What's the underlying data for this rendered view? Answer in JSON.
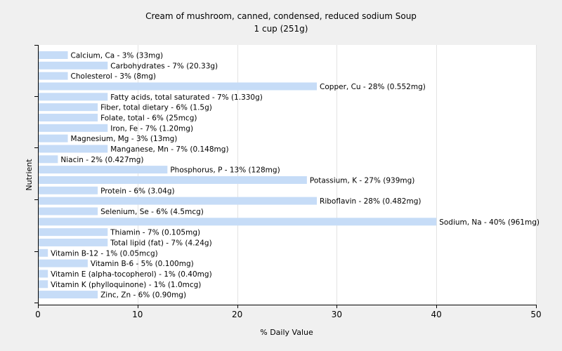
{
  "chart_data": {
    "type": "bar",
    "orientation": "horizontal",
    "title": "Cream of mushroom, canned, condensed, reduced sodium Soup",
    "subtitle": "1 cup (251g)",
    "xlabel": "% Daily Value",
    "ylabel": "Nutrient",
    "xlim": [
      0,
      50
    ],
    "xticks": [
      0,
      10,
      20,
      30,
      40,
      50
    ],
    "grid": true,
    "bar_color": "#c6dcf7",
    "categories": [
      "Calcium, Ca",
      "Carbohydrates",
      "Cholesterol",
      "Copper, Cu",
      "Fatty acids, total saturated",
      "Fiber, total dietary",
      "Folate, total",
      "Iron, Fe",
      "Magnesium, Mg",
      "Manganese, Mn",
      "Niacin",
      "Phosphorus, P",
      "Potassium, K",
      "Protein",
      "Riboflavin",
      "Selenium, Se",
      "Sodium, Na",
      "Thiamin",
      "Total lipid (fat)",
      "Vitamin B-12",
      "Vitamin B-6",
      "Vitamin E (alpha-tocopherol)",
      "Vitamin K (phylloquinone)",
      "Zinc, Zn"
    ],
    "values": [
      3,
      7,
      3,
      28,
      7,
      6,
      6,
      7,
      3,
      7,
      2,
      13,
      27,
      6,
      28,
      6,
      40,
      7,
      7,
      1,
      5,
      1,
      1,
      6
    ],
    "labels": [
      "Calcium, Ca - 3% (33mg)",
      "Carbohydrates - 7% (20.33g)",
      "Cholesterol - 3% (8mg)",
      "Copper, Cu - 28% (0.552mg)",
      "Fatty acids, total saturated - 7% (1.330g)",
      "Fiber, total dietary - 6% (1.5g)",
      "Folate, total - 6% (25mcg)",
      "Iron, Fe - 7% (1.20mg)",
      "Magnesium, Mg - 3% (13mg)",
      "Manganese, Mn - 7% (0.148mg)",
      "Niacin - 2% (0.427mg)",
      "Phosphorus, P - 13% (128mg)",
      "Potassium, K - 27% (939mg)",
      "Protein - 6% (3.04g)",
      "Riboflavin - 28% (0.482mg)",
      "Selenium, Se - 6% (4.5mcg)",
      "Sodium, Na - 40% (961mg)",
      "Thiamin - 7% (0.105mg)",
      "Total lipid (fat) - 7% (4.24g)",
      "Vitamin B-12 - 1% (0.05mcg)",
      "Vitamin B-6 - 5% (0.100mg)",
      "Vitamin E (alpha-tocopherol) - 1% (0.40mg)",
      "Vitamin K (phylloquinone) - 1% (1.0mcg)",
      "Zinc, Zn - 6% (0.90mg)"
    ]
  }
}
